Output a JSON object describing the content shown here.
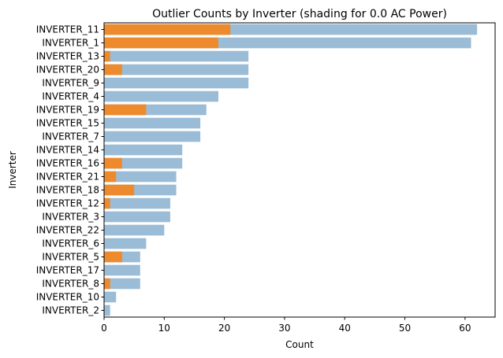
{
  "chart_data": {
    "type": "bar",
    "orientation": "horizontal",
    "stacking": "overlay",
    "title": "Outlier Counts by Inverter (shading for 0.0 AC Power)",
    "xlabel": "Count",
    "ylabel": "Inverter",
    "xlim": [
      0,
      65
    ],
    "xticks": [
      0,
      10,
      20,
      30,
      40,
      50,
      60
    ],
    "grid": false,
    "categories": [
      "INVERTER_11",
      "INVERTER_1",
      "INVERTER_13",
      "INVERTER_20",
      "INVERTER_9",
      "INVERTER_4",
      "INVERTER_19",
      "INVERTER_15",
      "INVERTER_7",
      "INVERTER_14",
      "INVERTER_16",
      "INVERTER_21",
      "INVERTER_18",
      "INVERTER_12",
      "INVERTER_3",
      "INVERTER_22",
      "INVERTER_6",
      "INVERTER_5",
      "INVERTER_17",
      "INVERTER_8",
      "INVERTER_10",
      "INVERTER_2"
    ],
    "series": [
      {
        "color": "#9bbcd6",
        "values": [
          62,
          61,
          24,
          24,
          24,
          19,
          17,
          16,
          16,
          13,
          13,
          12,
          12,
          11,
          11,
          10,
          7,
          6,
          6,
          6,
          2,
          1
        ]
      },
      {
        "color": "#ee8a2e",
        "values": [
          21,
          19,
          1,
          3,
          0,
          0,
          7,
          0,
          0,
          0,
          3,
          2,
          5,
          1,
          0,
          0,
          0,
          3,
          0,
          1,
          0,
          0
        ]
      }
    ]
  }
}
